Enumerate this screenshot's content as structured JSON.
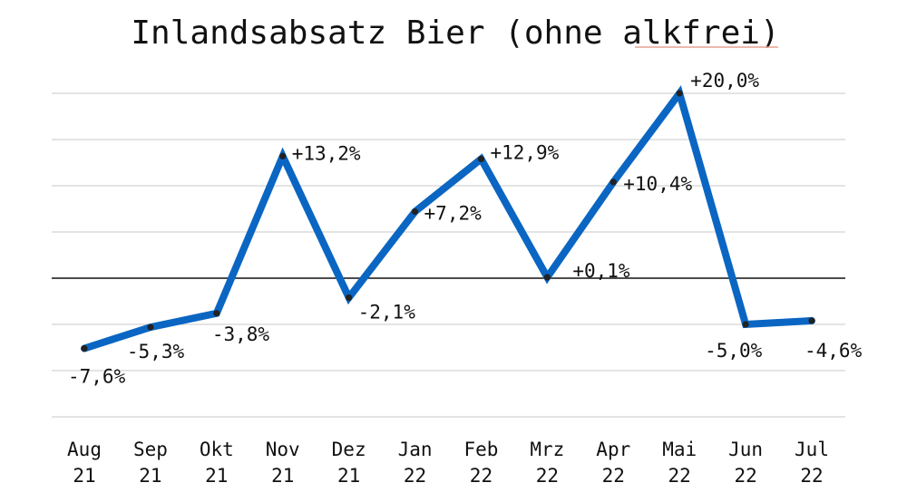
{
  "colors": {
    "series": "#0a66c2",
    "marker": "#222222",
    "grid": "#c9c9c9",
    "zero_line": "#111111"
  },
  "chart_data": {
    "type": "line",
    "title": "Inlandsabsatz Bier (ohne alkfrei)",
    "xlabel": "",
    "ylabel": "",
    "categories": [
      [
        "Aug",
        "21"
      ],
      [
        "Sep",
        "21"
      ],
      [
        "Okt",
        "21"
      ],
      [
        "Nov",
        "21"
      ],
      [
        "Dez",
        "21"
      ],
      [
        "Jan",
        "22"
      ],
      [
        "Feb",
        "22"
      ],
      [
        "Mrz",
        "22"
      ],
      [
        "Apr",
        "22"
      ],
      [
        "Mai",
        "22"
      ],
      [
        "Jun",
        "22"
      ],
      [
        "Jul",
        "22"
      ]
    ],
    "series": [
      {
        "values": [
          -7.6,
          -5.3,
          -3.8,
          13.2,
          -2.1,
          7.2,
          12.9,
          0.1,
          10.4,
          20.0,
          -5.0,
          -4.6
        ],
        "labels": [
          "-7,6%",
          "-5,3%",
          "-3,8%",
          "+13,2%",
          "-2,1%",
          "+7,2%",
          "+12,9%",
          "+0,1%",
          "+10,4%",
          "+20,0%",
          "-5,0%",
          "-4,6%"
        ]
      }
    ],
    "ylim": [
      -15,
      20
    ],
    "gridlines": [
      -15,
      -10,
      -5,
      5,
      10,
      15,
      20
    ],
    "zero_line": 0,
    "grid": true,
    "legend": "none"
  }
}
